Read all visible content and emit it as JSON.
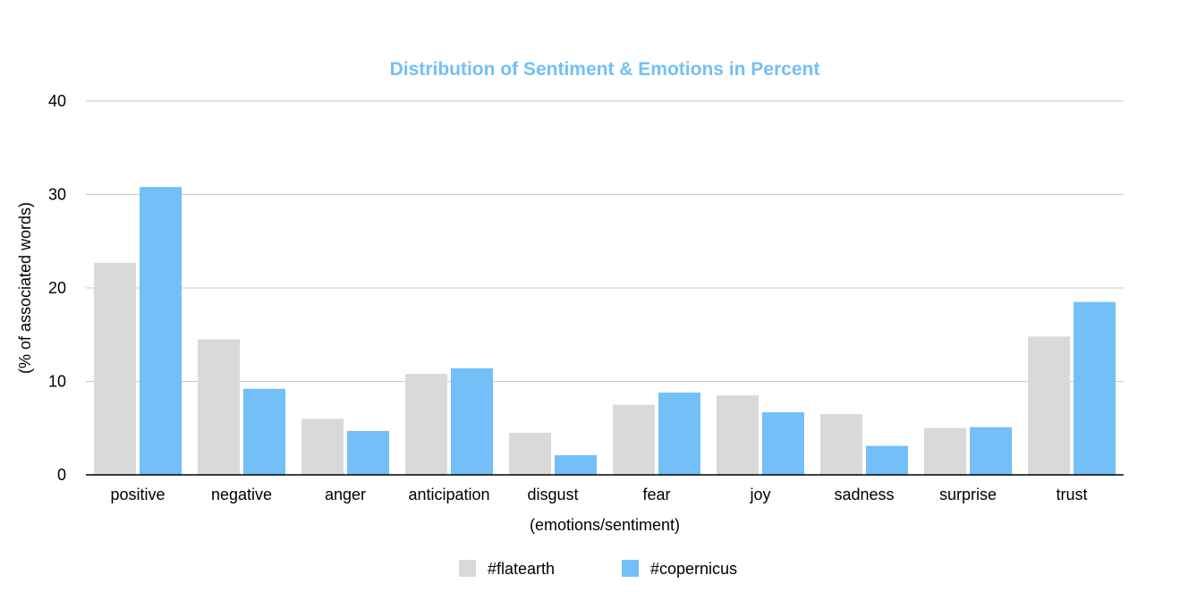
{
  "chart_data": {
    "type": "bar",
    "title": "Distribution of Sentiment & Emotions in Percent",
    "xlabel": "(emotions/sentiment)",
    "ylabel": "(% of associated words)",
    "categories": [
      "positive",
      "negative",
      "anger",
      "anticipation",
      "disgust",
      "fear",
      "joy",
      "sadness",
      "surprise",
      "trust"
    ],
    "series": [
      {
        "name": "#flatearth",
        "color": "#d9d9d9",
        "values": [
          22.7,
          14.5,
          6.0,
          10.8,
          4.5,
          7.5,
          8.5,
          6.5,
          5.0,
          14.8
        ]
      },
      {
        "name": "#copernicus",
        "color": "#73bff8",
        "values": [
          30.8,
          9.2,
          4.7,
          11.4,
          2.1,
          8.8,
          6.7,
          3.1,
          5.1,
          18.5
        ]
      }
    ],
    "ylim": [
      0,
      40
    ],
    "yticks": [
      0,
      10,
      20,
      30,
      40
    ],
    "grid": true,
    "legend_position": "bottom-center",
    "title_color": "#73bff8",
    "grid_color": "#c8c8c8",
    "axis_color": "#000000"
  }
}
